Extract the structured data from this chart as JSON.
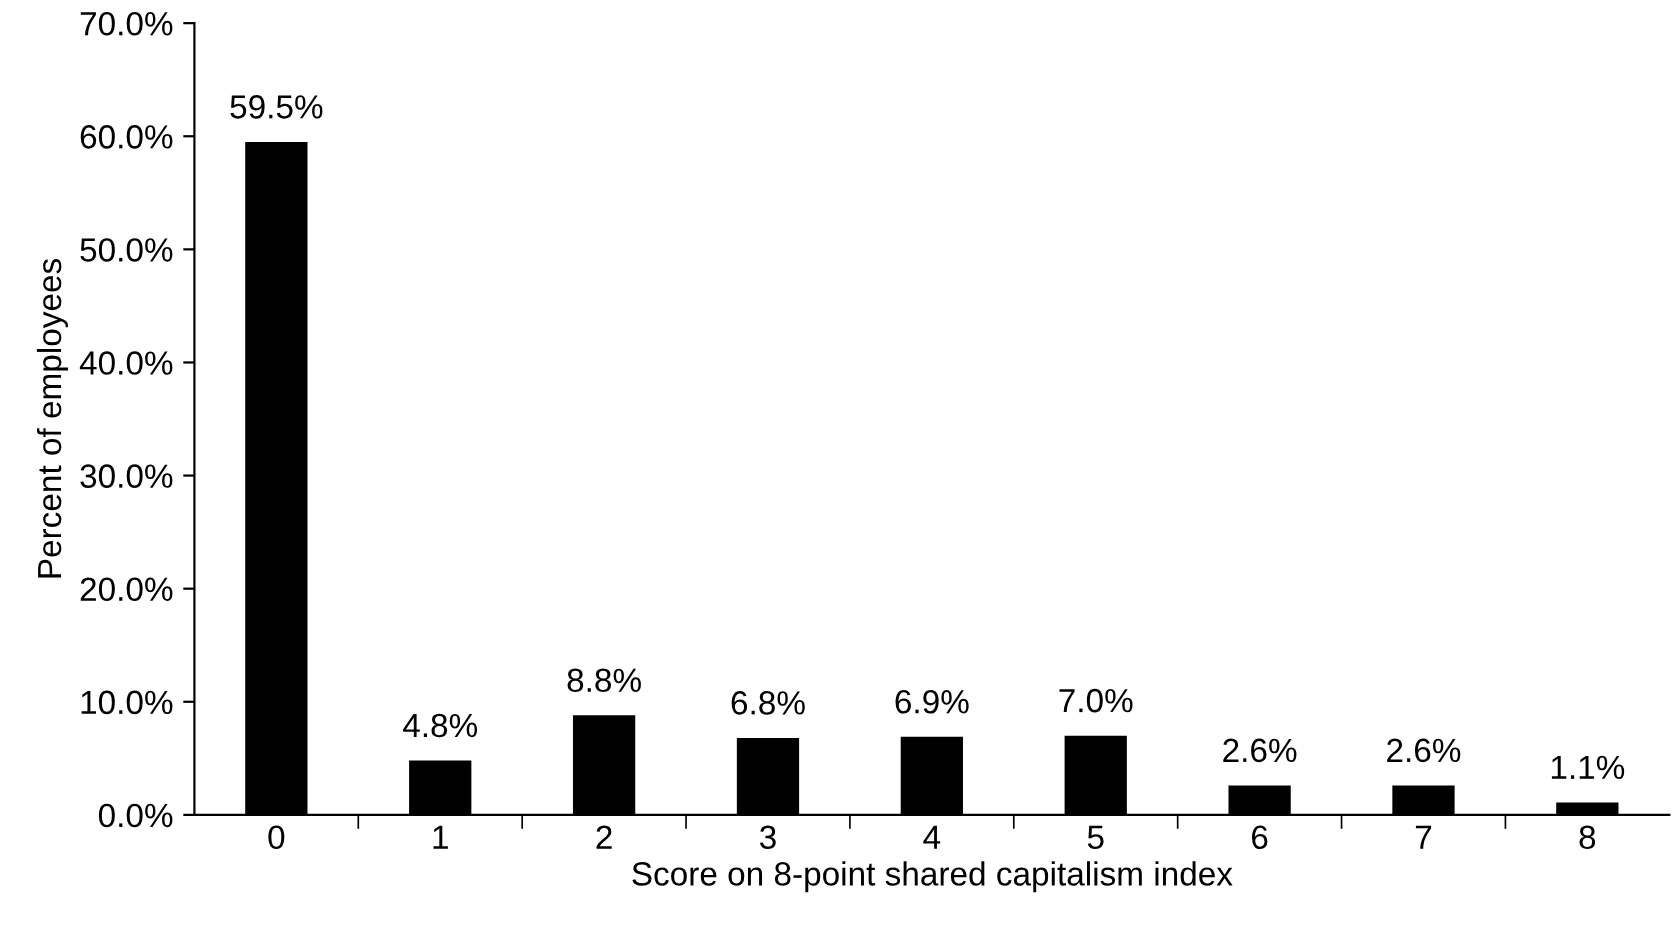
{
  "chart_data": {
    "type": "bar",
    "xlabel": "Score on 8-point shared capitalism index",
    "ylabel": "Percent of employees",
    "categories": [
      "0",
      "1",
      "2",
      "3",
      "4",
      "5",
      "6",
      "7",
      "8"
    ],
    "values": [
      59.5,
      4.8,
      8.8,
      6.8,
      6.9,
      7.0,
      2.6,
      2.6,
      1.1
    ],
    "value_labels": [
      "59.5%",
      "4.8%",
      "8.8%",
      "6.8%",
      "6.9%",
      "7.0%",
      "2.6%",
      "2.6%",
      "1.1%"
    ],
    "color": "#000000",
    "ylim": [
      0,
      70
    ],
    "yticks": [
      {
        "value": 0,
        "label": "0.0%"
      },
      {
        "value": 10,
        "label": "10.0%"
      },
      {
        "value": 20,
        "label": "20.0%"
      },
      {
        "value": 30,
        "label": "30.0%"
      },
      {
        "value": 40,
        "label": "40.0%"
      },
      {
        "value": 50,
        "label": "50.0%"
      },
      {
        "value": 60,
        "label": "60.0%"
      },
      {
        "value": 70,
        "label": "70.0%"
      }
    ],
    "grid": false,
    "legend": false
  }
}
